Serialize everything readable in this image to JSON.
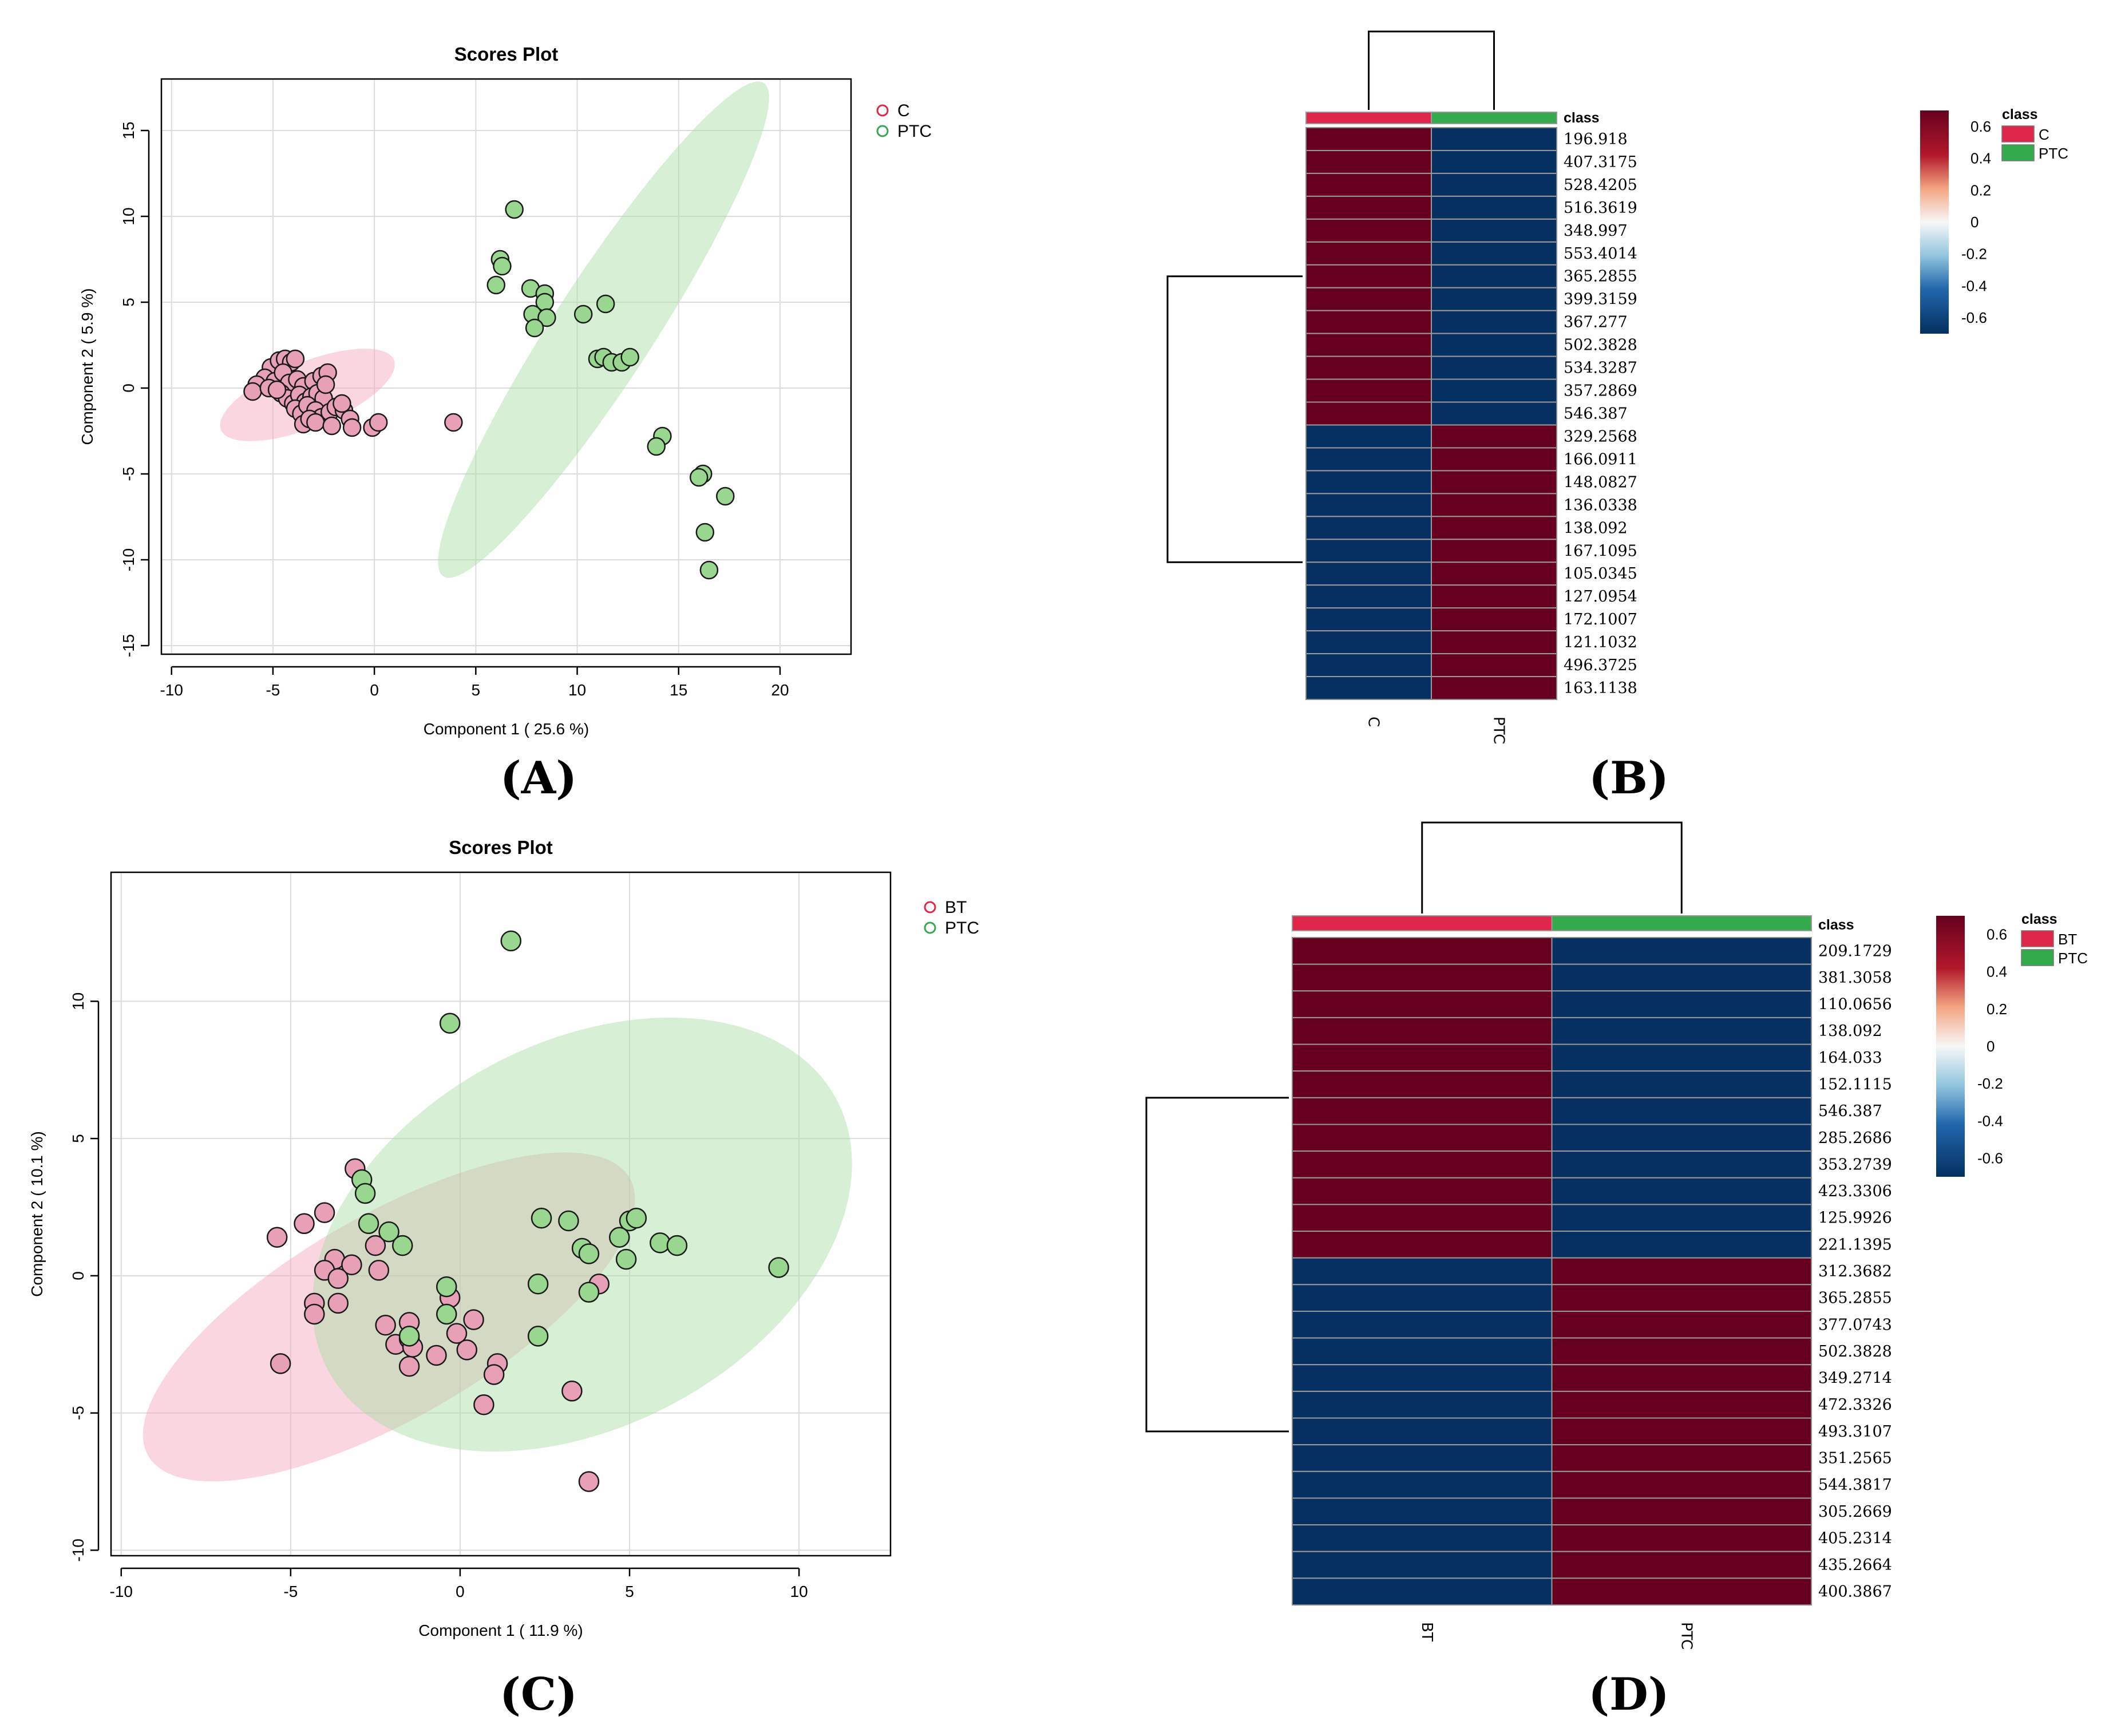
{
  "colors": {
    "group1": "#E8A0B6",
    "group2": "#99D68F",
    "ellipse1": "#F4A6BA",
    "ellipse2": "#A7DBA2",
    "heat_high": "#67001F",
    "heat_low": "#053061",
    "class1": "#E0264B",
    "class2": "#33AA4C"
  },
  "chart_data": [
    {
      "type": "scatter",
      "panel_label": "(A)",
      "title": "Scores Plot",
      "xlabel": "Component 1 ( 25.6 %)",
      "ylabel": "Component 2 ( 5.9 %)",
      "xlim": [
        -10.5,
        23.5
      ],
      "ylim": [
        -15.5,
        18
      ],
      "xticks": [
        -10,
        -5,
        0,
        5,
        10,
        15,
        20
      ],
      "yticks": [
        -15,
        -10,
        -5,
        0,
        5,
        10,
        15
      ],
      "legend": "top-right",
      "grid": true,
      "series": [
        {
          "name": "C",
          "ellipse": {
            "cx": -3.3,
            "cy": -0.4,
            "rx": 4.6,
            "ry": 1.9,
            "angle_deg": -22
          },
          "points": [
            [
              -5.1,
              1.2
            ],
            [
              -4.7,
              1.6
            ],
            [
              -4.4,
              1.7
            ],
            [
              -4.1,
              1.5
            ],
            [
              -3.9,
              1.7
            ],
            [
              -5.4,
              0.6
            ],
            [
              -5.8,
              0.2
            ],
            [
              -6.0,
              -0.2
            ],
            [
              -4.9,
              0.4
            ],
            [
              -4.5,
              0.9
            ],
            [
              -4.2,
              0.3
            ],
            [
              -3.8,
              0.5
            ],
            [
              -3.5,
              0.1
            ],
            [
              -3.0,
              0.4
            ],
            [
              -2.6,
              0.7
            ],
            [
              -2.3,
              0.9
            ],
            [
              -4.6,
              -0.3
            ],
            [
              -4.3,
              -0.6
            ],
            [
              -4.0,
              -0.9
            ],
            [
              -3.7,
              -0.4
            ],
            [
              -3.4,
              -0.8
            ],
            [
              -3.1,
              -0.5
            ],
            [
              -2.8,
              -0.3
            ],
            [
              -2.5,
              -0.6
            ],
            [
              -3.9,
              -1.2
            ],
            [
              -3.6,
              -1.5
            ],
            [
              -3.3,
              -1.0
            ],
            [
              -2.9,
              -1.3
            ],
            [
              -2.6,
              -1.7
            ],
            [
              -2.2,
              -1.4
            ],
            [
              -1.9,
              -1.1
            ],
            [
              -1.5,
              -1.3
            ],
            [
              -1.2,
              -1.8
            ],
            [
              -3.5,
              -2.1
            ],
            [
              -3.2,
              -1.8
            ],
            [
              -2.9,
              -2.0
            ],
            [
              -2.1,
              -2.2
            ],
            [
              -1.1,
              -2.3
            ],
            [
              -0.1,
              -2.3
            ],
            [
              0.2,
              -2.0
            ],
            [
              -1.6,
              -0.9
            ],
            [
              -2.4,
              0.2
            ],
            [
              -5.2,
              0.0
            ],
            [
              -4.8,
              -0.1
            ],
            [
              3.9,
              -2.0
            ]
          ]
        },
        {
          "name": "PTC",
          "ellipse": {
            "cx": 11.3,
            "cy": 3.4,
            "rx": 14.5,
            "ry": 2.9,
            "angle_deg": -57
          },
          "points": [
            [
              6.9,
              10.4
            ],
            [
              6.2,
              7.5
            ],
            [
              6.3,
              7.1
            ],
            [
              6.0,
              6.0
            ],
            [
              7.7,
              5.8
            ],
            [
              8.4,
              5.5
            ],
            [
              8.4,
              5.0
            ],
            [
              7.8,
              4.3
            ],
            [
              8.5,
              4.1
            ],
            [
              7.9,
              3.5
            ],
            [
              10.3,
              4.3
            ],
            [
              11.4,
              4.9
            ],
            [
              11.0,
              1.7
            ],
            [
              11.3,
              1.8
            ],
            [
              11.7,
              1.5
            ],
            [
              12.2,
              1.5
            ],
            [
              12.6,
              1.8
            ],
            [
              14.2,
              -2.8
            ],
            [
              13.9,
              -3.4
            ],
            [
              16.2,
              -5.0
            ],
            [
              16.0,
              -5.2
            ],
            [
              17.3,
              -6.3
            ],
            [
              16.3,
              -8.4
            ],
            [
              16.5,
              -10.6
            ]
          ]
        }
      ]
    },
    {
      "type": "heatmap",
      "panel_label": "(B)",
      "columns": [
        "C",
        "PTC"
      ],
      "class_label": "class",
      "legend_classes": [
        "C",
        "PTC"
      ],
      "colorbar_ticks": [
        "0.6",
        "0.4",
        "0.2",
        "0",
        "-0.2",
        "-0.4",
        "-0.6"
      ],
      "colorbar_range": [
        -0.7,
        0.7
      ],
      "rows": [
        "196.918",
        "407.3175",
        "528.4205",
        "516.3619",
        "348.997",
        "553.4014",
        "365.2855",
        "399.3159",
        "367.277",
        "502.3828",
        "534.3287",
        "357.2869",
        "546.387",
        "329.2568",
        "166.0911",
        "148.0827",
        "136.0338",
        "138.092",
        "167.1095",
        "105.0345",
        "127.0954",
        "172.1007",
        "121.1032",
        "496.3725",
        "163.1138"
      ],
      "values": [
        [
          0.7,
          -0.7
        ],
        [
          0.7,
          -0.7
        ],
        [
          0.7,
          -0.7
        ],
        [
          0.7,
          -0.7
        ],
        [
          0.7,
          -0.7
        ],
        [
          0.7,
          -0.7
        ],
        [
          0.7,
          -0.7
        ],
        [
          0.7,
          -0.7
        ],
        [
          0.7,
          -0.7
        ],
        [
          0.7,
          -0.7
        ],
        [
          0.7,
          -0.7
        ],
        [
          0.7,
          -0.7
        ],
        [
          0.7,
          -0.7
        ],
        [
          -0.7,
          0.7
        ],
        [
          -0.7,
          0.7
        ],
        [
          -0.7,
          0.7
        ],
        [
          -0.7,
          0.7
        ],
        [
          -0.7,
          0.7
        ],
        [
          -0.7,
          0.7
        ],
        [
          -0.7,
          0.7
        ],
        [
          -0.7,
          0.7
        ],
        [
          -0.7,
          0.7
        ],
        [
          -0.7,
          0.7
        ],
        [
          -0.7,
          0.7
        ],
        [
          -0.7,
          0.7
        ]
      ]
    },
    {
      "type": "scatter",
      "panel_label": "(C)",
      "title": "Scores Plot",
      "xlabel": "Component 1 ( 11.9 %)",
      "ylabel": "Component 2 ( 10.1 %)",
      "xlim": [
        -10.3,
        12.7
      ],
      "ylim": [
        -10.2,
        14.7
      ],
      "xticks": [
        -10,
        -5,
        0,
        5,
        10
      ],
      "yticks": [
        -10,
        -5,
        0,
        5,
        10
      ],
      "legend": "top-right",
      "grid": true,
      "series": [
        {
          "name": "BT",
          "ellipse": {
            "cx": -2.1,
            "cy": -1.5,
            "rx": 8.2,
            "ry": 3.7,
            "angle_deg": -30
          },
          "points": [
            [
              -3.1,
              3.9
            ],
            [
              -4.0,
              2.3
            ],
            [
              -4.6,
              1.9
            ],
            [
              -5.4,
              1.4
            ],
            [
              -2.5,
              1.1
            ],
            [
              -3.7,
              0.6
            ],
            [
              -3.2,
              0.4
            ],
            [
              -4.0,
              0.2
            ],
            [
              -2.4,
              0.2
            ],
            [
              -3.6,
              -0.1
            ],
            [
              -4.3,
              -1.0
            ],
            [
              -3.6,
              -1.0
            ],
            [
              -4.3,
              -1.4
            ],
            [
              -2.2,
              -1.8
            ],
            [
              -1.5,
              -1.7
            ],
            [
              -0.3,
              -0.8
            ],
            [
              0.4,
              -1.6
            ],
            [
              -1.9,
              -2.5
            ],
            [
              -1.5,
              -2.3
            ],
            [
              -0.1,
              -2.1
            ],
            [
              -1.4,
              -2.6
            ],
            [
              -0.7,
              -2.9
            ],
            [
              0.2,
              -2.7
            ],
            [
              1.1,
              -3.2
            ],
            [
              1.0,
              -3.6
            ],
            [
              -1.5,
              -3.3
            ],
            [
              -5.3,
              -3.2
            ],
            [
              0.7,
              -4.7
            ],
            [
              3.3,
              -4.2
            ],
            [
              3.8,
              -7.5
            ],
            [
              4.1,
              -0.3
            ]
          ]
        },
        {
          "name": "PTC",
          "ellipse": {
            "cx": 3.6,
            "cy": 1.5,
            "rx": 8.5,
            "ry": 7.0,
            "angle_deg": -28
          },
          "points": [
            [
              1.5,
              12.2
            ],
            [
              -0.3,
              9.2
            ],
            [
              -2.9,
              3.5
            ],
            [
              -2.8,
              3.0
            ],
            [
              -2.7,
              1.9
            ],
            [
              -2.1,
              1.6
            ],
            [
              -1.7,
              1.1
            ],
            [
              2.4,
              2.1
            ],
            [
              3.2,
              2.0
            ],
            [
              5.0,
              2.0
            ],
            [
              5.2,
              2.1
            ],
            [
              4.7,
              1.4
            ],
            [
              5.9,
              1.2
            ],
            [
              6.4,
              1.1
            ],
            [
              3.6,
              1.0
            ],
            [
              3.8,
              0.8
            ],
            [
              4.9,
              0.6
            ],
            [
              9.4,
              0.3
            ],
            [
              -0.4,
              -0.4
            ],
            [
              2.3,
              -0.3
            ],
            [
              3.8,
              -0.6
            ],
            [
              -0.4,
              -1.4
            ],
            [
              -1.5,
              -2.2
            ],
            [
              2.3,
              -2.2
            ]
          ]
        }
      ]
    },
    {
      "type": "heatmap",
      "panel_label": "(D)",
      "columns": [
        "BT",
        "PTC"
      ],
      "class_label": "class",
      "legend_classes": [
        "BT",
        "PTC"
      ],
      "colorbar_ticks": [
        "0.6",
        "0.4",
        "0.2",
        "0",
        "-0.2",
        "-0.4",
        "-0.6"
      ],
      "colorbar_range": [
        -0.7,
        0.7
      ],
      "rows": [
        "209.1729",
        "381.3058",
        "110.0656",
        "138.092",
        "164.033",
        "152.1115",
        "546.387",
        "285.2686",
        "353.2739",
        "423.3306",
        "125.9926",
        "221.1395",
        "312.3682",
        "365.2855",
        "377.0743",
        "502.3828",
        "349.2714",
        "472.3326",
        "493.3107",
        "351.2565",
        "544.3817",
        "305.2669",
        "405.2314",
        "435.2664",
        "400.3867"
      ],
      "values": [
        [
          0.7,
          -0.7
        ],
        [
          0.7,
          -0.7
        ],
        [
          0.7,
          -0.7
        ],
        [
          0.7,
          -0.7
        ],
        [
          0.7,
          -0.7
        ],
        [
          0.7,
          -0.7
        ],
        [
          0.7,
          -0.7
        ],
        [
          0.7,
          -0.7
        ],
        [
          0.7,
          -0.7
        ],
        [
          0.7,
          -0.7
        ],
        [
          0.7,
          -0.7
        ],
        [
          0.7,
          -0.7
        ],
        [
          -0.7,
          0.7
        ],
        [
          -0.7,
          0.7
        ],
        [
          -0.7,
          0.7
        ],
        [
          -0.7,
          0.7
        ],
        [
          -0.7,
          0.7
        ],
        [
          -0.7,
          0.7
        ],
        [
          -0.7,
          0.7
        ],
        [
          -0.7,
          0.7
        ],
        [
          -0.7,
          0.7
        ],
        [
          -0.7,
          0.7
        ],
        [
          -0.7,
          0.7
        ],
        [
          -0.7,
          0.7
        ],
        [
          -0.7,
          0.7
        ]
      ]
    }
  ]
}
